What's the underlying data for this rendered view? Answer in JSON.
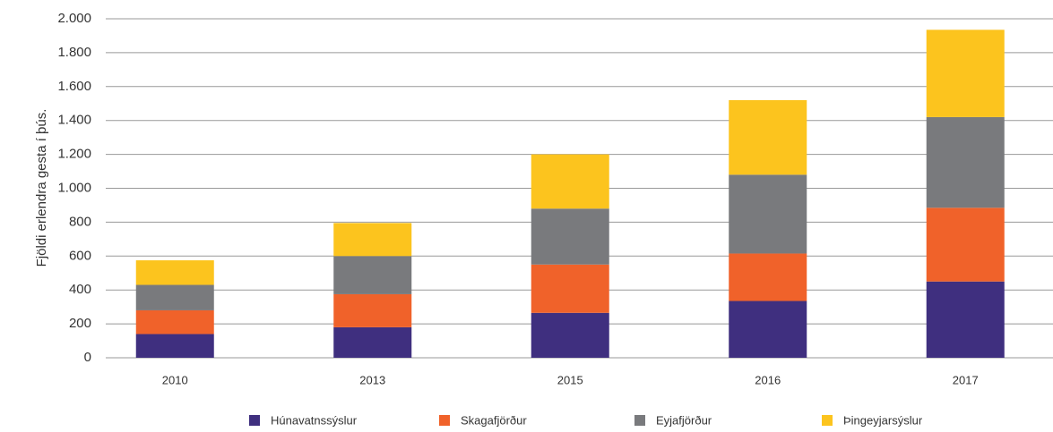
{
  "chart_data": {
    "type": "stacked_bar",
    "y_label": "Fjöldi erlendra gesta í þús.",
    "categories": [
      "2010",
      "2013",
      "2015",
      "2016",
      "2017"
    ],
    "series": [
      {
        "name": "Húnavatnssýslur",
        "color": "#3f2f7f",
        "values": [
          140,
          180,
          265,
          335,
          450
        ]
      },
      {
        "name": "Skagafjörður",
        "color": "#f0622a",
        "values": [
          140,
          195,
          285,
          280,
          435
        ]
      },
      {
        "name": "Eyjafjörður",
        "color": "#797a7d",
        "values": [
          150,
          225,
          330,
          465,
          535
        ]
      },
      {
        "name": "Þingeyjarsýslur",
        "color": "#fcc41e",
        "values": [
          145,
          195,
          320,
          440,
          515
        ]
      }
    ],
    "ylim": [
      0,
      2000
    ],
    "yticks": [
      0,
      200,
      400,
      600,
      800,
      {
        "value": 1000,
        "label": "1.000"
      },
      {
        "value": 1200,
        "label": "1.200"
      },
      {
        "value": 1400,
        "label": "1.400"
      },
      {
        "value": 1600,
        "label": "1.600"
      },
      {
        "value": 1800,
        "label": "1.800"
      },
      {
        "value": 2000,
        "label": "2.000"
      }
    ],
    "grid": true,
    "legend": "bottom"
  }
}
